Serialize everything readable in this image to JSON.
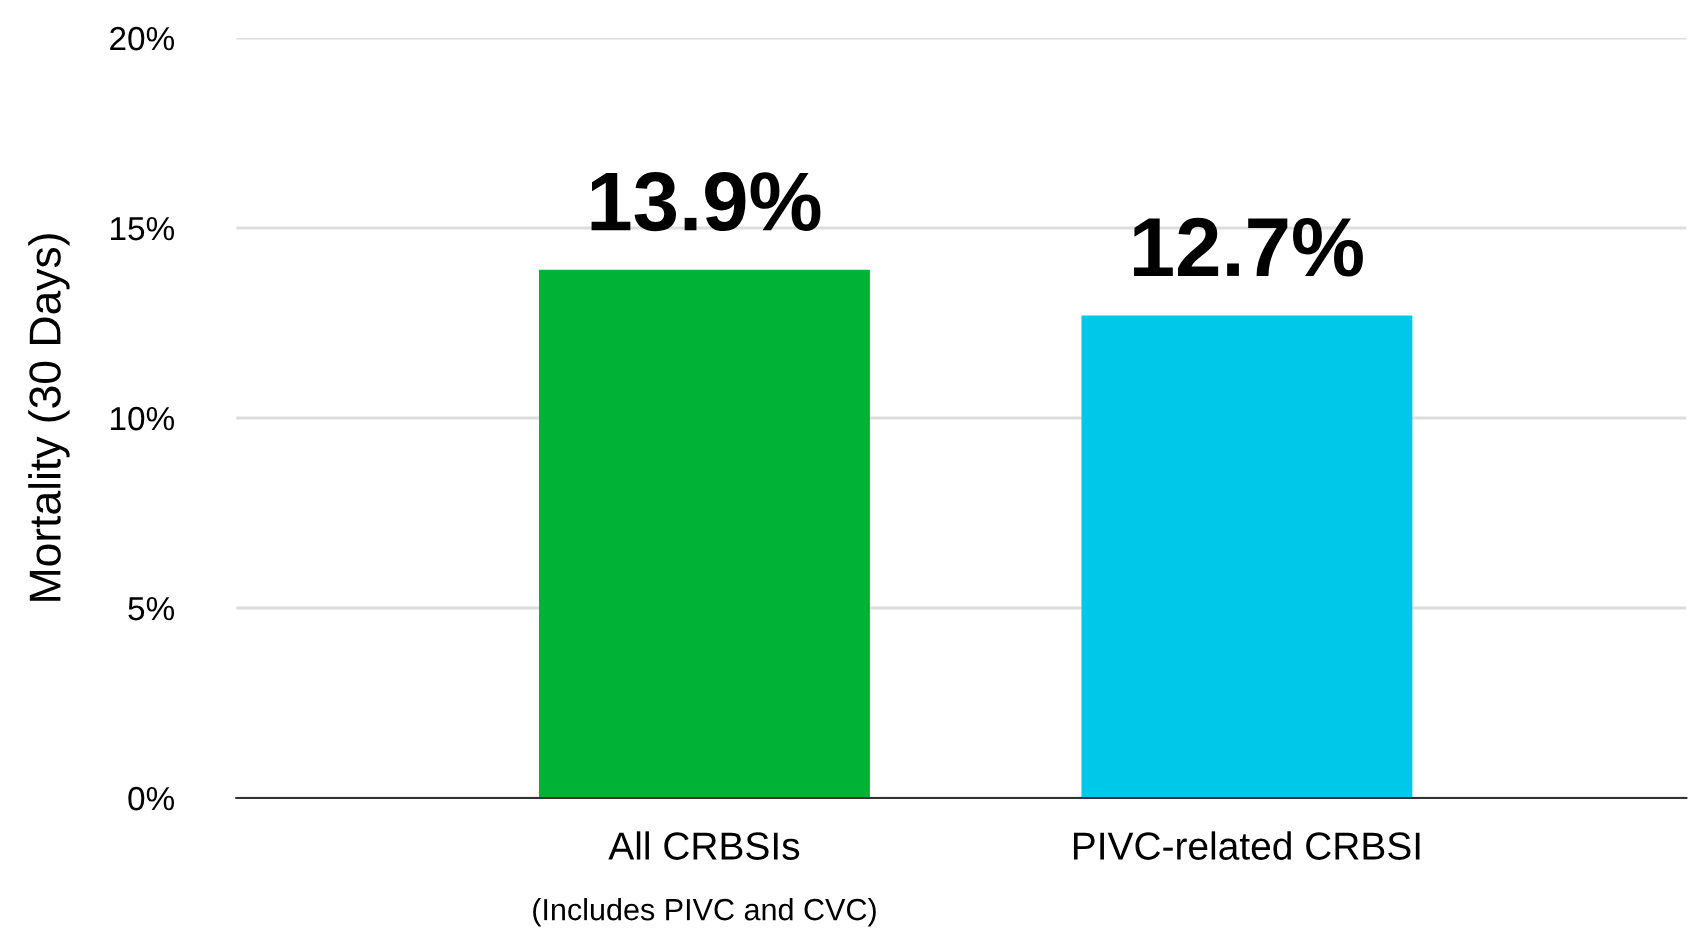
{
  "chart_data": {
    "type": "bar",
    "ylabel": "Mortality (30 Days)",
    "categories": [
      "All CRBSIs",
      "PIVC-related CRBSI"
    ],
    "values": [
      13.9,
      12.7
    ],
    "colors": [
      "#00b336",
      "#00c8e8"
    ],
    "value_labels": [
      "13.9%",
      "12.7%"
    ],
    "ylim": [
      0,
      20
    ],
    "yticks": [
      {
        "value": 0,
        "label": "0%"
      },
      {
        "value": 5,
        "label": "5%"
      },
      {
        "value": 10,
        "label": "10%"
      },
      {
        "value": 15,
        "label": "15%"
      },
      {
        "value": 20,
        "label": "20%"
      }
    ],
    "grid": "y",
    "annotations": [
      "(Includes PIVC and CVC)"
    ]
  }
}
